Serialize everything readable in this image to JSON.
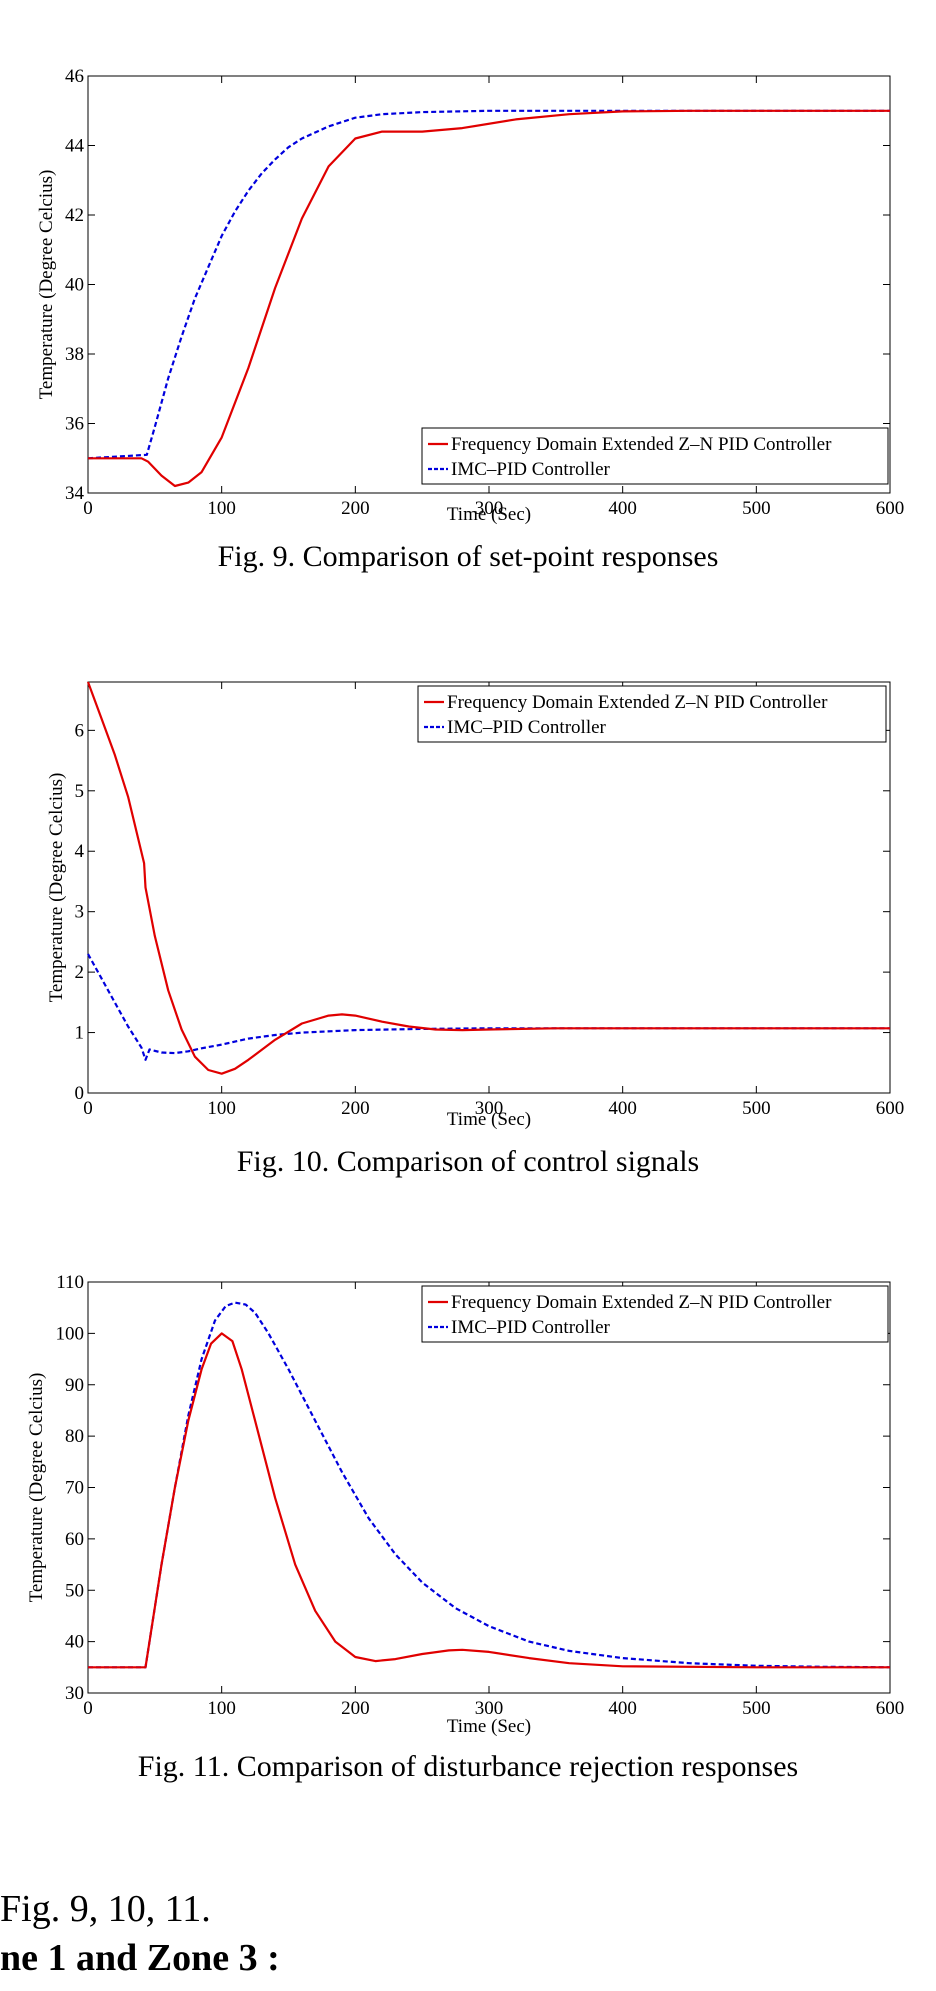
{
  "chart_data": [
    {
      "type": "line",
      "xlabel": "Time (Sec)",
      "ylabel": "Temperature (Degree Celcius)",
      "xlim": [
        0,
        600
      ],
      "ylim": [
        34,
        46
      ],
      "xticks": [
        0,
        100,
        200,
        300,
        400,
        500,
        600
      ],
      "yticks": [
        34,
        36,
        38,
        40,
        42,
        44,
        46
      ],
      "legend_position": "bottom-right",
      "grid": false,
      "series": [
        {
          "name": "Frequency Domain Extended Z–N PID Controller",
          "color": "#e00000",
          "dash": "solid",
          "x": [
            0,
            40,
            45,
            55,
            65,
            75,
            85,
            100,
            120,
            140,
            160,
            180,
            200,
            220,
            250,
            280,
            320,
            360,
            400,
            450,
            500,
            550,
            600
          ],
          "y": [
            35,
            35,
            34.9,
            34.5,
            34.2,
            34.3,
            34.6,
            35.6,
            37.6,
            39.9,
            41.9,
            43.4,
            44.2,
            44.4,
            44.4,
            44.5,
            44.75,
            44.9,
            44.98,
            45,
            45,
            45,
            45
          ]
        },
        {
          "name": "IMC–PID Controller",
          "color": "#0000dd",
          "dash": "dashed",
          "x": [
            0,
            44,
            50,
            60,
            70,
            80,
            90,
            100,
            110,
            120,
            130,
            140,
            150,
            160,
            180,
            200,
            220,
            250,
            300,
            350,
            400,
            500,
            600
          ],
          "y": [
            35,
            35.1,
            35.9,
            37.3,
            38.5,
            39.6,
            40.5,
            41.4,
            42.1,
            42.7,
            43.2,
            43.6,
            43.95,
            44.2,
            44.55,
            44.8,
            44.9,
            44.96,
            45,
            45,
            45,
            45,
            45
          ]
        }
      ]
    },
    {
      "type": "line",
      "xlabel": "Time (Sec)",
      "ylabel": "Temperature (Degree Celcius)",
      "xlim": [
        0,
        600
      ],
      "ylim": [
        0,
        6.8
      ],
      "xticks": [
        0,
        100,
        200,
        300,
        400,
        500,
        600
      ],
      "yticks": [
        0,
        1,
        2,
        3,
        4,
        5,
        6
      ],
      "legend_position": "top-right",
      "grid": false,
      "series": [
        {
          "name": "Frequency Domain Extended Z–N PID Controller",
          "color": "#e00000",
          "dash": "solid",
          "x": [
            0,
            10,
            20,
            30,
            42,
            43,
            50,
            60,
            70,
            80,
            90,
            100,
            110,
            120,
            140,
            160,
            180,
            190,
            200,
            220,
            240,
            260,
            280,
            300,
            350,
            400,
            500,
            600
          ],
          "y": [
            6.8,
            6.2,
            5.6,
            4.9,
            3.8,
            3.4,
            2.6,
            1.7,
            1.05,
            0.6,
            0.38,
            0.32,
            0.4,
            0.55,
            0.88,
            1.15,
            1.28,
            1.3,
            1.28,
            1.18,
            1.1,
            1.05,
            1.04,
            1.05,
            1.07,
            1.07,
            1.07,
            1.07
          ]
        },
        {
          "name": "IMC–PID Controller",
          "color": "#0000dd",
          "dash": "dashed",
          "x": [
            0,
            10,
            20,
            30,
            40,
            43,
            46,
            55,
            65,
            75,
            85,
            100,
            120,
            140,
            160,
            200,
            250,
            300,
            400,
            500,
            600
          ],
          "y": [
            2.3,
            1.9,
            1.5,
            1.1,
            0.75,
            0.55,
            0.72,
            0.67,
            0.66,
            0.69,
            0.74,
            0.8,
            0.9,
            0.96,
            1.0,
            1.04,
            1.06,
            1.07,
            1.07,
            1.07,
            1.07
          ]
        }
      ]
    },
    {
      "type": "line",
      "xlabel": "Time (Sec)",
      "ylabel": "Temperature (Degree Celcius)",
      "xlim": [
        0,
        600
      ],
      "ylim": [
        30,
        110
      ],
      "xticks": [
        0,
        100,
        200,
        300,
        400,
        500,
        600
      ],
      "yticks": [
        30,
        40,
        50,
        60,
        70,
        80,
        90,
        100,
        110
      ],
      "legend_position": "top-right",
      "grid": false,
      "series": [
        {
          "name": "Frequency Domain Extended Z–N PID Controller",
          "color": "#e00000",
          "dash": "solid",
          "x": [
            0,
            43,
            46,
            55,
            65,
            75,
            85,
            92,
            100,
            108,
            115,
            125,
            140,
            155,
            170,
            185,
            200,
            215,
            230,
            250,
            270,
            280,
            300,
            330,
            360,
            400,
            500,
            600
          ],
          "y": [
            35,
            35,
            40,
            55,
            70,
            83,
            93,
            98,
            100,
            98.5,
            93,
            83,
            68,
            55,
            46,
            40,
            37,
            36.2,
            36.6,
            37.6,
            38.3,
            38.4,
            38,
            36.8,
            35.8,
            35.2,
            35,
            35
          ]
        },
        {
          "name": "IMC–PID Controller",
          "color": "#0000dd",
          "dash": "dashed",
          "x": [
            0,
            43,
            46,
            55,
            65,
            75,
            85,
            95,
            103,
            110,
            118,
            125,
            135,
            150,
            170,
            190,
            210,
            230,
            250,
            275,
            300,
            330,
            360,
            400,
            450,
            500,
            550,
            600
          ],
          "y": [
            35,
            35,
            40,
            55,
            70,
            84,
            95,
            102.5,
            105.3,
            106,
            105.6,
            104,
            100,
            93,
            83,
            73,
            64,
            57,
            51.5,
            46.5,
            43,
            40,
            38.2,
            36.8,
            35.8,
            35.3,
            35.1,
            35
          ]
        }
      ]
    }
  ],
  "captions": [
    "Fig. 9.  Comparison of set-point responses",
    "Fig. 10.  Comparison of control signals",
    "Fig. 11.  Comparison of disturbance rejection responses"
  ],
  "trailing_text": {
    "line1": "Fig. 9, 10, 11.",
    "line2": "ne 1 and Zone 3 :"
  }
}
